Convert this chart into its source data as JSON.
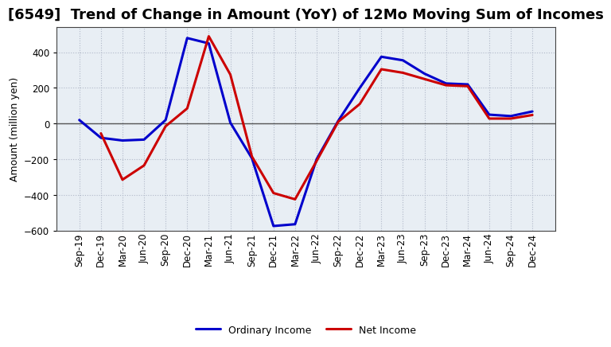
{
  "title": "[6549]  Trend of Change in Amount (YoY) of 12Mo Moving Sum of Incomes",
  "ylabel": "Amount (million yen)",
  "xlabels": [
    "Sep-19",
    "Dec-19",
    "Mar-20",
    "Jun-20",
    "Sep-20",
    "Dec-20",
    "Mar-21",
    "Jun-21",
    "Sep-21",
    "Dec-21",
    "Mar-22",
    "Jun-22",
    "Sep-22",
    "Dec-22",
    "Mar-23",
    "Jun-23",
    "Sep-23",
    "Dec-23",
    "Mar-24",
    "Jun-24",
    "Sep-24",
    "Dec-24"
  ],
  "ordinary_income": [
    20,
    -80,
    -95,
    -90,
    20,
    480,
    450,
    5,
    -195,
    -575,
    -565,
    -200,
    15,
    200,
    375,
    355,
    280,
    225,
    220,
    50,
    42,
    68
  ],
  "net_income": [
    null,
    -55,
    -315,
    -235,
    -15,
    85,
    490,
    275,
    -185,
    -390,
    -425,
    -210,
    10,
    110,
    305,
    285,
    250,
    215,
    210,
    28,
    28,
    48
  ],
  "ordinary_color": "#0000cc",
  "net_color": "#cc0000",
  "ylim": [
    -600,
    540
  ],
  "yticks": [
    -600,
    -400,
    -200,
    0,
    200,
    400
  ],
  "plot_bg_color": "#e8eef4",
  "figure_bg_color": "#ffffff",
  "grid_color": "#b0b8c8",
  "line_width": 2.2,
  "title_fontsize": 13,
  "tick_fontsize": 8.5,
  "ylabel_fontsize": 9,
  "legend_fontsize": 9
}
